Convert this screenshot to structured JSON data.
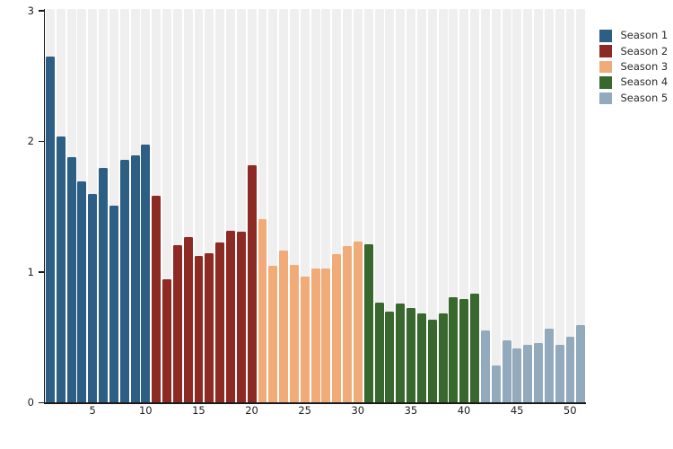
{
  "chart_data": {
    "type": "bar",
    "title": "",
    "xlabel": "",
    "ylabel": "",
    "ylim": [
      0,
      3
    ],
    "y_ticks": [
      0,
      1,
      2,
      3
    ],
    "x_ticks": [
      5,
      10,
      15,
      20,
      25,
      30,
      35,
      40,
      45,
      50
    ],
    "x_range": [
      1,
      51
    ],
    "grid": "vertical-background-bands",
    "band_color": "#efefef",
    "axis_color": "#1a1a1a",
    "legend_position": "top-right",
    "series": [
      {
        "name": "Season 1",
        "color": "#2d5f84",
        "episodes": [
          1,
          10
        ],
        "values": [
          2.65,
          2.04,
          1.88,
          1.7,
          1.6,
          1.8,
          1.51,
          1.86,
          1.9,
          1.98
        ]
      },
      {
        "name": "Season 2",
        "color": "#8e2a24",
        "episodes": [
          11,
          20
        ],
        "values": [
          1.59,
          0.95,
          1.21,
          1.27,
          1.13,
          1.15,
          1.23,
          1.32,
          1.31,
          1.82
        ]
      },
      {
        "name": "Season 3",
        "color": "#f1ab79",
        "episodes": [
          21,
          30
        ],
        "values": [
          1.41,
          1.05,
          1.17,
          1.06,
          0.97,
          1.03,
          1.03,
          1.14,
          1.2,
          1.24
        ]
      },
      {
        "name": "Season 4",
        "color": "#38682e",
        "episodes": [
          31,
          41
        ],
        "values": [
          1.22,
          0.77,
          0.7,
          0.76,
          0.73,
          0.69,
          0.64,
          0.69,
          0.81,
          0.8,
          0.84
        ]
      },
      {
        "name": "Season 5",
        "color": "#93a9bc",
        "episodes": [
          42,
          51
        ],
        "values": [
          0.56,
          0.29,
          0.48,
          0.42,
          0.45,
          0.46,
          0.57,
          0.45,
          0.51,
          0.6
        ]
      }
    ]
  }
}
